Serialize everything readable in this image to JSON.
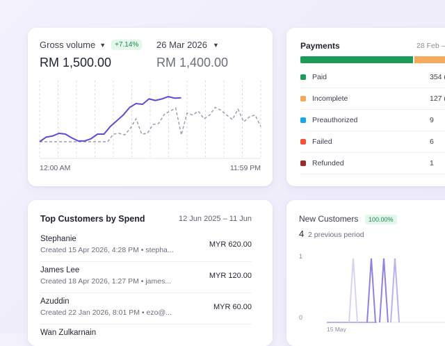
{
  "gross": {
    "metric_label": "Gross volume",
    "change_badge": "+7.14%",
    "compare_date": "26 Mar 2026",
    "value": "RM 1,500.00",
    "compare_value": "RM 1,400.00",
    "x_start": "12:00 AM",
    "x_end": "11:59 PM",
    "series_color": "#5b4bd8",
    "compare_color": "#9a9fb0"
  },
  "chart_data": {
    "type": "line",
    "series": [
      {
        "values": [
          0.4,
          0.52,
          0.55,
          0.62,
          0.6,
          0.5,
          0.42,
          0.42,
          0.48,
          0.6,
          0.6,
          0.8,
          0.95,
          1.1,
          1.3,
          1.4,
          1.38,
          1.52,
          1.48,
          1.52,
          1.58,
          1.54,
          1.55
        ]
      },
      {
        "values": [
          0.4,
          0.4,
          0.4,
          0.4,
          0.4,
          0.4,
          0.4,
          0.4,
          0.4,
          0.4,
          0.4,
          0.4,
          0.4,
          0.6,
          0.62,
          0.58,
          0.75,
          1.0,
          0.6,
          0.62,
          0.85,
          0.88,
          1.12,
          1.2,
          1.28,
          0.58,
          1.15,
          1.1,
          1.2,
          1.0,
          1.1,
          1.3,
          1.22,
          1.1,
          0.98,
          1.25,
          0.92,
          1.05,
          1.1,
          0.8
        ]
      }
    ]
  },
  "payments": {
    "title": "Payments",
    "range": "28 Feb –",
    "bar": [
      {
        "color": "#1e9a5a",
        "share": 0.68
      },
      {
        "color": "#f5a95c",
        "share": 0.32
      }
    ],
    "rows": [
      {
        "label": "Paid",
        "count": "354 (",
        "color": "#1e9a5a"
      },
      {
        "label": "Incomplete",
        "count": "127 (",
        "color": "#f5a95c"
      },
      {
        "label": "Preauthorized",
        "count": "9",
        "color": "#1aa6e6"
      },
      {
        "label": "Failed",
        "count": "6",
        "color": "#f0533c"
      },
      {
        "label": "Refunded",
        "count": "1",
        "color": "#9a2b2b"
      }
    ]
  },
  "top_customers": {
    "title": "Top Customers by Spend",
    "range": "12 Jun 2025 – 11 Jun",
    "rows": [
      {
        "name": "Stephanie",
        "sub": "Created 15 Apr 2026, 4:28 PM • stepha...",
        "amount": "MYR 620.00"
      },
      {
        "name": "James Lee",
        "sub": "Created 18 Apr 2026, 1:27 PM • james...",
        "amount": "MYR 120.00"
      },
      {
        "name": "Azuddin",
        "sub": "Created 22 Jan 2026, 8:01 PM • ezo@...",
        "amount": "MYR 60.00"
      },
      {
        "name": "Wan Zulkarnain",
        "sub": "",
        "amount": ""
      }
    ]
  },
  "new_customers": {
    "title": "New Customers",
    "badge": "100.00%",
    "value": "4",
    "prev_label": "2 previous period",
    "y_top": "1",
    "y_bottom": "0",
    "x_label": "15 May"
  }
}
